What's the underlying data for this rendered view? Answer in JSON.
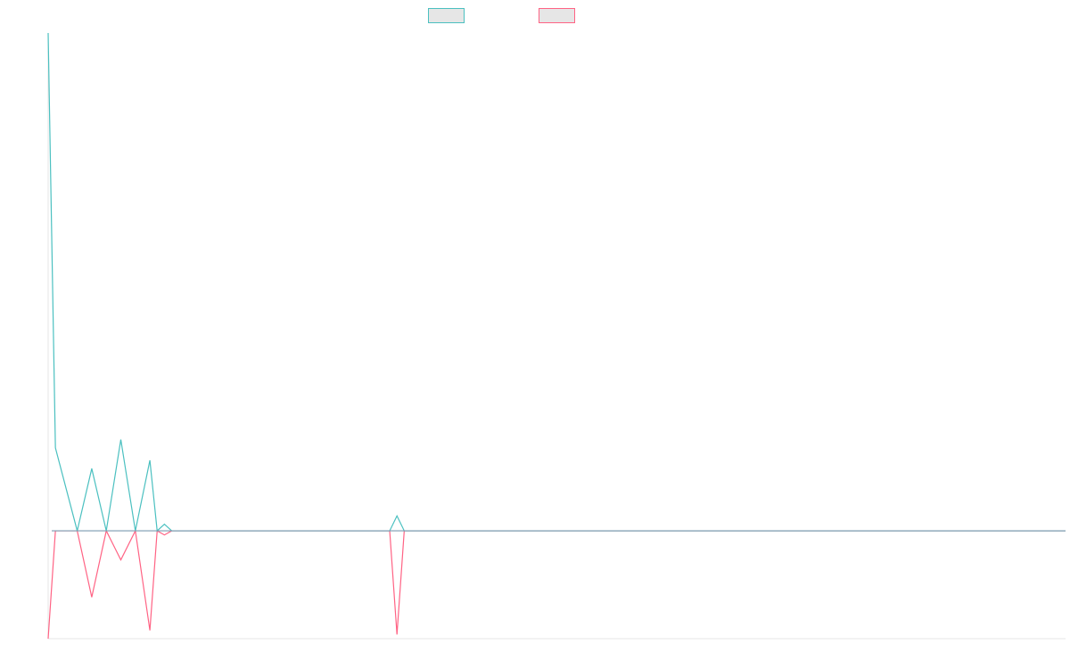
{
  "chart_data": {
    "type": "line",
    "title": "",
    "xlabel": "",
    "ylabel": "",
    "x": [
      0,
      1,
      4,
      6,
      8,
      10,
      12,
      14,
      15,
      16,
      17,
      47,
      48,
      49,
      140
    ],
    "ylim": [
      -1.3,
      6.0
    ],
    "grid": false,
    "legend": {
      "placement": "top-center"
    },
    "series": [
      {
        "name": "",
        "color": "#4bc0c0",
        "values": [
          6.0,
          1.0,
          0,
          0.75,
          0,
          1.1,
          0,
          0.85,
          0,
          0.08,
          0,
          0,
          0.18,
          0,
          0
        ]
      },
      {
        "name": "",
        "color": "#ff6384",
        "values": [
          -1.3,
          0,
          0,
          -0.8,
          0,
          -0.35,
          0,
          -1.2,
          0,
          -0.05,
          0,
          0,
          -1.25,
          0,
          0
        ]
      }
    ]
  }
}
